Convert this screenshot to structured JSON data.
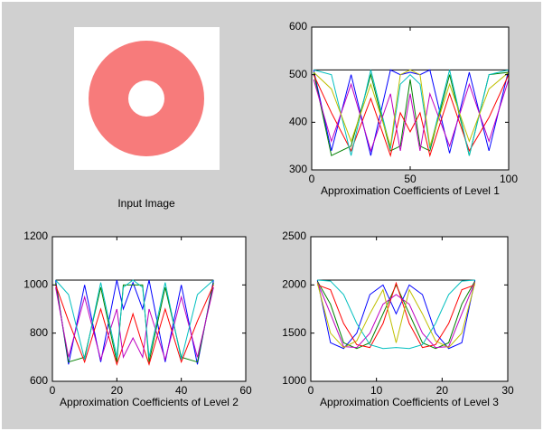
{
  "image": {
    "caption": "Input Image"
  },
  "chart_data": [
    {
      "type": "line",
      "xlabel": "Approximation Coefficients of Level 1",
      "x": [
        1,
        10,
        20,
        30,
        40,
        45,
        50,
        55,
        60,
        70,
        80,
        90,
        100
      ],
      "xlim": [
        0,
        100
      ],
      "xticks": [
        0,
        50,
        100
      ],
      "ylim": [
        300,
        600
      ],
      "yticks": [
        300,
        400,
        500,
        600
      ],
      "series": [
        {
          "color": "#000000",
          "values": [
            510,
            510,
            510,
            510,
            510,
            510,
            510,
            510,
            510,
            510,
            510,
            510,
            510
          ]
        },
        {
          "color": "#0000ff",
          "values": [
            510,
            340,
            500,
            330,
            510,
            500,
            505,
            500,
            510,
            335,
            505,
            340,
            510
          ]
        },
        {
          "color": "#008000",
          "values": [
            505,
            330,
            350,
            500,
            340,
            350,
            490,
            350,
            340,
            500,
            330,
            500,
            505
          ]
        },
        {
          "color": "#ff0000",
          "values": [
            500,
            420,
            340,
            450,
            330,
            420,
            380,
            420,
            330,
            460,
            340,
            410,
            500
          ]
        },
        {
          "color": "#00bfbf",
          "values": [
            510,
            500,
            330,
            510,
            345,
            480,
            500,
            480,
            345,
            510,
            330,
            500,
            510
          ]
        },
        {
          "color": "#bf00bf",
          "values": [
            490,
            360,
            480,
            340,
            460,
            340,
            460,
            340,
            460,
            350,
            480,
            360,
            490
          ]
        },
        {
          "color": "#bfbf00",
          "values": [
            505,
            470,
            360,
            480,
            350,
            500,
            510,
            500,
            350,
            480,
            360,
            470,
            505
          ]
        }
      ]
    },
    {
      "type": "line",
      "xlabel": "Approximation Coefficients of Level 2",
      "x": [
        1,
        5,
        10,
        15,
        20,
        22,
        25,
        28,
        30,
        35,
        40,
        45,
        50
      ],
      "xlim": [
        0,
        60
      ],
      "xticks": [
        0,
        20,
        40,
        60
      ],
      "ylim": [
        600,
        1200
      ],
      "yticks": [
        600,
        800,
        1000,
        1200
      ],
      "series": [
        {
          "color": "#000000",
          "values": [
            1020,
            1020,
            1020,
            1020,
            1020,
            1020,
            1020,
            1020,
            1020,
            1020,
            1020,
            1020,
            1020
          ]
        },
        {
          "color": "#0000ff",
          "values": [
            1020,
            670,
            1000,
            680,
            1020,
            900,
            1010,
            900,
            1020,
            680,
            1000,
            670,
            1020
          ]
        },
        {
          "color": "#008000",
          "values": [
            1010,
            680,
            700,
            990,
            680,
            1000,
            1000,
            1000,
            680,
            990,
            700,
            680,
            1010
          ]
        },
        {
          "color": "#ff0000",
          "values": [
            1000,
            850,
            680,
            900,
            670,
            750,
            880,
            750,
            670,
            900,
            680,
            850,
            1000
          ]
        },
        {
          "color": "#bf00bf",
          "values": [
            990,
            700,
            950,
            690,
            900,
            700,
            780,
            700,
            900,
            690,
            950,
            700,
            990
          ]
        },
        {
          "color": "#00bfbf",
          "values": [
            1020,
            960,
            690,
            1010,
            700,
            990,
            1020,
            990,
            700,
            1010,
            690,
            960,
            1020
          ]
        }
      ]
    },
    {
      "type": "line",
      "xlabel": "Approximation Coefficients of Level 3",
      "x": [
        1,
        3,
        5,
        7,
        9,
        11,
        13,
        15,
        17,
        19,
        21,
        23,
        25
      ],
      "xlim": [
        0,
        30
      ],
      "xticks": [
        0,
        10,
        20,
        30
      ],
      "ylim": [
        1000,
        2500
      ],
      "yticks": [
        1000,
        1500,
        2000,
        2500
      ],
      "series": [
        {
          "color": "#000000",
          "values": [
            2050,
            2050,
            2050,
            2050,
            2050,
            2050,
            2050,
            2050,
            2050,
            2050,
            2050,
            2050,
            2050
          ]
        },
        {
          "color": "#0000ff",
          "values": [
            2050,
            1400,
            1340,
            1500,
            1900,
            2000,
            1700,
            2000,
            1900,
            1500,
            1340,
            1400,
            2050
          ]
        },
        {
          "color": "#008000",
          "values": [
            2040,
            1800,
            1400,
            1340,
            1400,
            1700,
            2000,
            1700,
            1400,
            1340,
            1400,
            1800,
            2040
          ]
        },
        {
          "color": "#ff0000",
          "values": [
            2000,
            1950,
            1600,
            1380,
            1350,
            1600,
            2020,
            1600,
            1350,
            1380,
            1600,
            1950,
            2000
          ]
        },
        {
          "color": "#bf00bf",
          "values": [
            2030,
            1700,
            1360,
            1350,
            1500,
            1800,
            1900,
            1800,
            1500,
            1350,
            1360,
            1700,
            2030
          ]
        },
        {
          "color": "#00bfbf",
          "values": [
            2050,
            2040,
            1900,
            1600,
            1380,
            1340,
            1350,
            1340,
            1380,
            1600,
            1900,
            2040,
            2050
          ]
        },
        {
          "color": "#bfbf00",
          "values": [
            2020,
            1500,
            1350,
            1420,
            1700,
            1950,
            1400,
            1950,
            1700,
            1420,
            1350,
            1500,
            2020
          ]
        }
      ]
    }
  ]
}
